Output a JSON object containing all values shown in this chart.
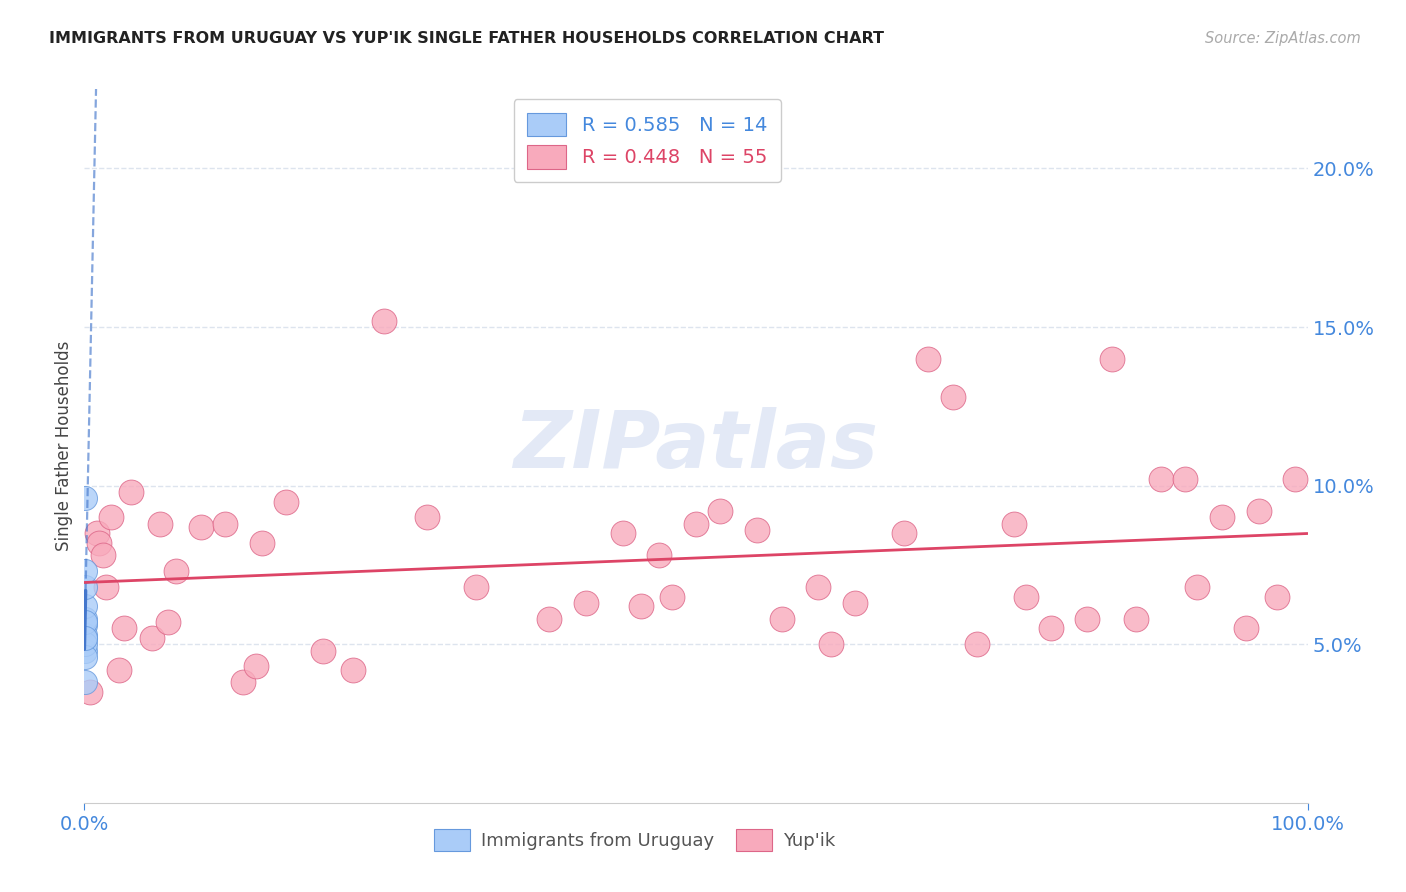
{
  "title": "IMMIGRANTS FROM URUGUAY VS YUP'IK SINGLE FATHER HOUSEHOLDS CORRELATION CHART",
  "source": "Source: ZipAtlas.com",
  "ylabel_label": "Single Father Households",
  "background_color": "#ffffff",
  "series1_color": "#aaccf8",
  "series1_edge": "#6699dd",
  "series2_color": "#f8aabc",
  "series2_edge": "#dd6688",
  "trendline1_color": "#4477cc",
  "trendline2_color": "#dd4466",
  "axis_tick_color": "#4488dd",
  "grid_color": "#dde4ee",
  "watermark_color": "#ccd8f0",
  "title_color": "#222222",
  "source_color": "#aaaaaa",
  "legend1_text_color": "#4488dd",
  "legend2_text_color": "#dd4466",
  "uruguay_x": [
    0.0002,
    0.0003,
    0.0003,
    0.0004,
    0.0004,
    0.0004,
    0.0005,
    0.0005,
    0.0005,
    0.0006,
    0.0006,
    0.0007,
    0.0008,
    0.0009
  ],
  "uruguay_y": [
    0.048,
    0.052,
    0.056,
    0.053,
    0.058,
    0.062,
    0.05,
    0.046,
    0.057,
    0.068,
    0.073,
    0.052,
    0.096,
    0.038
  ],
  "yupik_x": [
    0.005,
    0.01,
    0.012,
    0.015,
    0.018,
    0.022,
    0.028,
    0.032,
    0.038,
    0.055,
    0.062,
    0.068,
    0.075,
    0.095,
    0.115,
    0.13,
    0.14,
    0.145,
    0.165,
    0.195,
    0.22,
    0.245,
    0.28,
    0.32,
    0.38,
    0.41,
    0.44,
    0.455,
    0.47,
    0.48,
    0.5,
    0.52,
    0.55,
    0.57,
    0.6,
    0.61,
    0.63,
    0.67,
    0.69,
    0.71,
    0.73,
    0.76,
    0.77,
    0.79,
    0.82,
    0.84,
    0.86,
    0.88,
    0.9,
    0.91,
    0.93,
    0.95,
    0.96,
    0.975,
    0.99
  ],
  "yupik_y": [
    0.035,
    0.085,
    0.082,
    0.078,
    0.068,
    0.09,
    0.042,
    0.055,
    0.098,
    0.052,
    0.088,
    0.057,
    0.073,
    0.087,
    0.088,
    0.038,
    0.043,
    0.082,
    0.095,
    0.048,
    0.042,
    0.152,
    0.09,
    0.068,
    0.058,
    0.063,
    0.085,
    0.062,
    0.078,
    0.065,
    0.088,
    0.092,
    0.086,
    0.058,
    0.068,
    0.05,
    0.063,
    0.085,
    0.14,
    0.128,
    0.05,
    0.088,
    0.065,
    0.055,
    0.058,
    0.14,
    0.058,
    0.102,
    0.102,
    0.068,
    0.09,
    0.055,
    0.092,
    0.065,
    0.102
  ],
  "xlim": [
    0.0,
    1.0
  ],
  "ylim": [
    0.0,
    0.225
  ],
  "xticks": [
    0.0,
    1.0
  ],
  "yticks": [
    0.05,
    0.1,
    0.15,
    0.2
  ],
  "xticklabels": [
    "0.0%",
    "100.0%"
  ],
  "yticklabels": [
    "5.0%",
    "10.0%",
    "15.0%",
    "20.0%"
  ]
}
